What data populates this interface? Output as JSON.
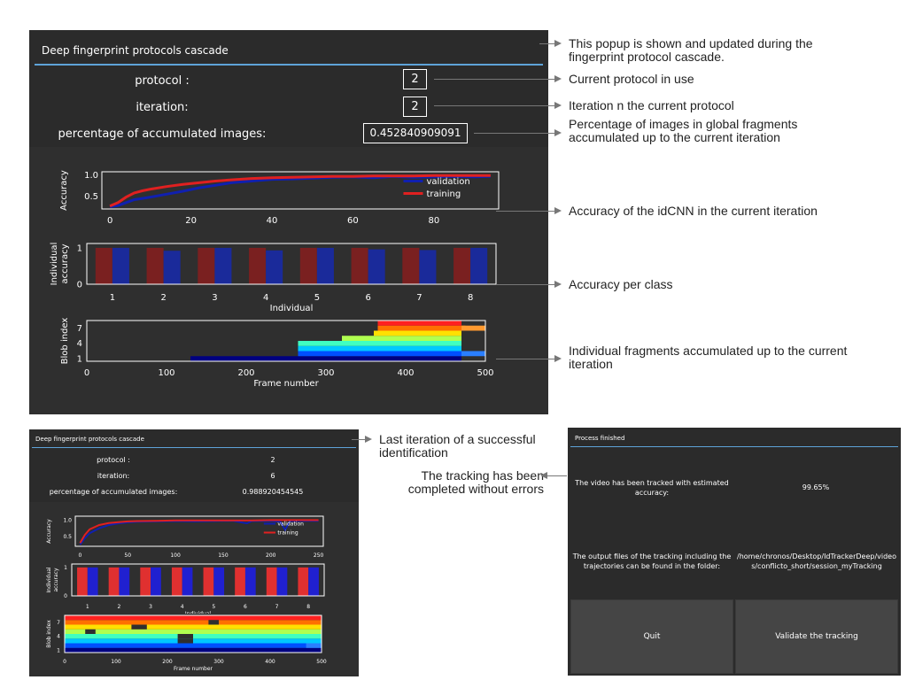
{
  "top_popup": {
    "title": "Deep fingerprint protocols cascade",
    "protocol_label": "protocol :",
    "protocol_value": "2",
    "iteration_label": "iteration:",
    "iteration_value": "2",
    "percentage_label": "percentage of accumulated images:",
    "percentage_value": "0.452840909091"
  },
  "bottom_popup": {
    "title": "Deep fingerprint protocols cascade",
    "protocol_label": "protocol :",
    "protocol_value": "2",
    "iteration_label": "iteration:",
    "iteration_value": "6",
    "percentage_label": "percentage of accumulated images:",
    "percentage_value": "0.988920454545"
  },
  "finished_popup": {
    "title": "Process finished",
    "accuracy_label": "The video has been tracked with estimated accuracy:",
    "accuracy_value": "99.65%",
    "output_label": "The output files of the tracking including the trajectories can be found in the folder:",
    "output_value": "/home/chronos/Desktop/IdTrackerDeep/videos/conflicto_short/session_myTracking",
    "quit_label": "Quit",
    "validate_label": "Validate the tracking"
  },
  "annotations": {
    "popup_note": "This popup is shown and updated during the fingerprint protocol cascade.",
    "protocol_note": "Current protocol in use",
    "iteration_note": "Iteration n the current protocol",
    "percentage_note": "Percentage of images in global fragments accumulated up to the current iteration",
    "accuracy_note": "Accuracy of the idCNN in the current iteration",
    "per_class_note": "Accuracy per class",
    "fragments_note": "Individual fragments accumulated up to the current iteration",
    "last_iteration_note": "Last iteration of a successful identification",
    "completed_note": "The tracking has been completed without errors"
  },
  "colors": {
    "panel_bg": "#2b2b2b",
    "accent_line": "#5ea3d8",
    "validation": "#1020b0",
    "training": "#e02020"
  },
  "chart_data": [
    {
      "type": "line",
      "name": "top-accuracy",
      "ylabel": "Accuracy",
      "xticks": [
        0,
        20,
        40,
        60,
        80
      ],
      "yticks": [
        0.5,
        1.0
      ],
      "xlim": [
        -2,
        96
      ],
      "ylim": [
        0.2,
        1.08
      ],
      "legend": [
        "validation",
        "training"
      ],
      "legend_position": "right",
      "series": [
        {
          "name": "validation",
          "x": [
            0,
            2,
            4,
            6,
            8,
            10,
            14,
            18,
            22,
            26,
            30,
            35,
            40,
            45,
            50,
            55,
            60,
            65,
            70,
            75,
            80,
            85,
            90,
            94
          ],
          "y": [
            0.25,
            0.28,
            0.35,
            0.42,
            0.45,
            0.48,
            0.55,
            0.62,
            0.7,
            0.76,
            0.82,
            0.86,
            0.9,
            0.91,
            0.93,
            0.95,
            0.96,
            0.94,
            0.97,
            0.95,
            0.96,
            0.97,
            0.96,
            0.97
          ]
        },
        {
          "name": "training",
          "x": [
            0,
            2,
            4,
            6,
            8,
            10,
            14,
            18,
            22,
            26,
            30,
            35,
            40,
            45,
            50,
            55,
            60,
            65,
            70,
            75,
            80,
            85,
            90,
            94
          ],
          "y": [
            0.27,
            0.35,
            0.48,
            0.58,
            0.63,
            0.67,
            0.73,
            0.78,
            0.82,
            0.86,
            0.89,
            0.92,
            0.94,
            0.95,
            0.96,
            0.97,
            0.97,
            0.98,
            0.98,
            0.98,
            0.99,
            0.99,
            0.99,
            0.99
          ]
        }
      ]
    },
    {
      "type": "bar",
      "name": "top-individual-accuracy",
      "xlabel": "Individual",
      "ylabel": "Individual accuracy",
      "categories": [
        "1",
        "2",
        "3",
        "4",
        "5",
        "6",
        "7",
        "8"
      ],
      "yticks": [
        0,
        1
      ],
      "ylim": [
        0,
        1.12
      ],
      "series": [
        {
          "values": [
            1,
            1,
            1,
            1,
            1,
            1,
            1,
            1
          ],
          "color": "#7a2020"
        },
        {
          "values": [
            1,
            0.92,
            1,
            0.93,
            1,
            0.96,
            0.94,
            1
          ],
          "color": "#1a2a9a"
        }
      ]
    },
    {
      "type": "bar",
      "name": "top-fragments",
      "xlabel": "Frame number",
      "ylabel": "Blob index",
      "xticks": [
        0,
        100,
        200,
        300,
        400,
        500
      ],
      "yticks": [
        1,
        4,
        7
      ],
      "xlim": [
        0,
        500
      ],
      "ylim": [
        0.5,
        8.5
      ],
      "segments": [
        {
          "blob": 1,
          "start": 130,
          "end": 470,
          "color": "#000080"
        },
        {
          "blob": 2,
          "start": 265,
          "end": 470,
          "color": "#0050ff"
        },
        {
          "blob": 3,
          "start": 265,
          "end": 470,
          "color": "#00c8ff"
        },
        {
          "blob": 4,
          "start": 265,
          "end": 470,
          "color": "#40ffc0"
        },
        {
          "blob": 5,
          "start": 320,
          "end": 470,
          "color": "#b0ff50"
        },
        {
          "blob": 6,
          "start": 360,
          "end": 470,
          "color": "#ffe000"
        },
        {
          "blob": 7,
          "start": 365,
          "end": 475,
          "color": "#ff7000"
        },
        {
          "blob": 8,
          "start": 365,
          "end": 470,
          "color": "#ff2020"
        },
        {
          "blob": 2,
          "start": 470,
          "end": 500,
          "color": "#2a7fff"
        },
        {
          "blob": 7,
          "start": 470,
          "end": 500,
          "color": "#ff9a30"
        }
      ]
    },
    {
      "type": "line",
      "name": "bottom-accuracy",
      "ylabel": "Accuracy",
      "xticks": [
        0,
        50,
        100,
        150,
        200,
        250
      ],
      "yticks": [
        0.5,
        1.0
      ],
      "xlim": [
        -5,
        255
      ],
      "ylim": [
        0.2,
        1.12
      ],
      "legend": [
        "validation",
        "training"
      ],
      "legend_position": "right",
      "series": [
        {
          "name": "validation",
          "x": [
            0,
            5,
            10,
            20,
            30,
            40,
            50,
            60,
            80,
            100,
            120,
            140,
            160,
            175,
            180,
            200,
            210,
            215,
            220,
            240,
            250
          ],
          "y": [
            0.25,
            0.45,
            0.6,
            0.75,
            0.85,
            0.9,
            0.93,
            0.95,
            0.96,
            0.97,
            0.96,
            0.97,
            0.98,
            0.9,
            0.97,
            0.98,
            0.95,
            0.7,
            0.97,
            0.98,
            0.98
          ]
        },
        {
          "name": "training",
          "x": [
            0,
            5,
            10,
            20,
            30,
            40,
            50,
            60,
            80,
            100,
            120,
            140,
            160,
            180,
            200,
            220,
            240,
            250
          ],
          "y": [
            0.3,
            0.55,
            0.72,
            0.85,
            0.91,
            0.94,
            0.96,
            0.97,
            0.98,
            0.99,
            0.99,
            0.99,
            0.99,
            0.99,
            1.0,
            1.0,
            1.0,
            1.0
          ]
        }
      ]
    },
    {
      "type": "bar",
      "name": "bottom-individual-accuracy",
      "xlabel": "Individual",
      "ylabel": "Individual accuracy",
      "categories": [
        "1",
        "2",
        "3",
        "4",
        "5",
        "6",
        "7",
        "8"
      ],
      "yticks": [
        0,
        1
      ],
      "ylim": [
        0,
        1.12
      ],
      "series": [
        {
          "values": [
            1,
            1,
            1,
            1,
            1,
            1,
            1,
            1
          ],
          "color": "#e03030"
        },
        {
          "values": [
            1,
            1,
            1,
            1,
            1,
            1,
            1,
            1
          ],
          "color": "#2020d0"
        }
      ]
    },
    {
      "type": "bar",
      "name": "bottom-fragments",
      "xlabel": "Frame number",
      "ylabel": "Blob index",
      "xticks": [
        0,
        100,
        200,
        300,
        400,
        500
      ],
      "yticks": [
        1,
        4,
        7
      ],
      "xlim": [
        0,
        500
      ],
      "ylim": [
        0.5,
        8.5
      ],
      "segments": [
        {
          "blob": 1,
          "start": 0,
          "end": 500,
          "color": "#000080"
        },
        {
          "blob": 2,
          "start": 0,
          "end": 500,
          "color": "#0050ff"
        },
        {
          "blob": 3,
          "start": 0,
          "end": 500,
          "color": "#00c8ff"
        },
        {
          "blob": 4,
          "start": 0,
          "end": 500,
          "color": "#40ffc0"
        },
        {
          "blob": 5,
          "start": 0,
          "end": 500,
          "color": "#b0ff50"
        },
        {
          "blob": 6,
          "start": 0,
          "end": 500,
          "color": "#ffe000"
        },
        {
          "blob": 7,
          "start": 0,
          "end": 500,
          "color": "#ff7000"
        },
        {
          "blob": 8,
          "start": 0,
          "end": 500,
          "color": "#ff2020"
        },
        {
          "blob": 5,
          "start": 40,
          "end": 60,
          "color": "#2f2f2f"
        },
        {
          "blob": 6,
          "start": 130,
          "end": 160,
          "color": "#2f2f2f"
        },
        {
          "blob": 4,
          "start": 220,
          "end": 250,
          "color": "#2f2f2f"
        },
        {
          "blob": 3,
          "start": 220,
          "end": 250,
          "color": "#2f2f2f"
        },
        {
          "blob": 7,
          "start": 280,
          "end": 300,
          "color": "#2f2f2f"
        },
        {
          "blob": 2,
          "start": 470,
          "end": 500,
          "color": "#2a7fff"
        }
      ]
    }
  ]
}
